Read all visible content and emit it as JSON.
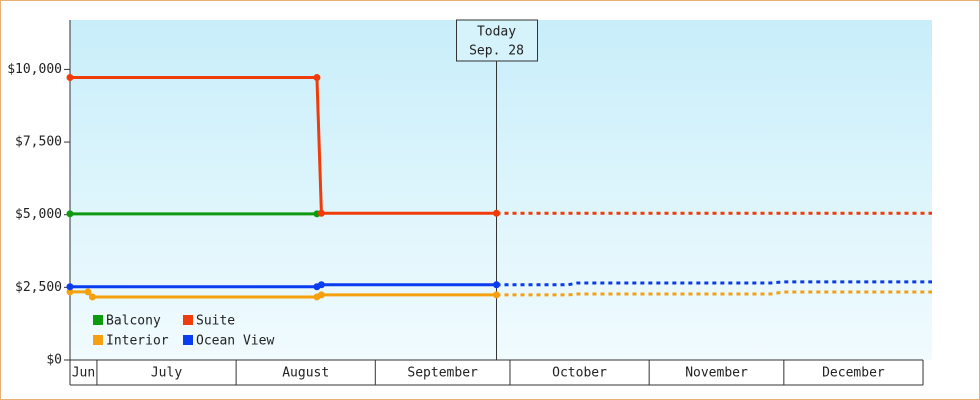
{
  "chart_data": {
    "type": "line",
    "xlim": [
      24,
      216
    ],
    "ylim": [
      0,
      11700
    ],
    "yticks": [
      {
        "value": 0,
        "label": "$0"
      },
      {
        "value": 2500,
        "label": "$2,500"
      },
      {
        "value": 5000,
        "label": "$5,000"
      },
      {
        "value": 7500,
        "label": "$7,500"
      },
      {
        "value": 10000,
        "label": "$10,000"
      }
    ],
    "x_bands": {
      "edges": [
        24,
        30,
        61,
        92,
        122,
        153,
        183,
        214
      ],
      "labels": [
        "Jun",
        "July",
        "August",
        "September",
        "October",
        "November",
        "December"
      ]
    },
    "annotation": {
      "x": 119,
      "lines": [
        "Today",
        "Sep. 28"
      ]
    },
    "legend": "lower left",
    "series": [
      {
        "name": "Balcony",
        "color": "#0e9a0e",
        "x": [
          24,
          79
        ],
        "values": [
          5030,
          5030
        ],
        "forecast_x": [],
        "forecast_values": []
      },
      {
        "name": "Suite",
        "color": "#f03c0a",
        "x": [
          24,
          79,
          80,
          119
        ],
        "values": [
          9720,
          9720,
          5050,
          5050
        ],
        "forecast_x": [
          119,
          135,
          137,
          180,
          183,
          216
        ],
        "forecast_values": [
          5050,
          5050,
          5050,
          5050,
          5050,
          5050
        ]
      },
      {
        "name": "Interior",
        "color": "#f5a00f",
        "x": [
          24,
          28,
          29,
          79,
          80,
          119
        ],
        "values": [
          2345,
          2345,
          2170,
          2170,
          2240,
          2240
        ],
        "forecast_x": [
          119,
          135,
          137,
          180,
          183,
          216
        ],
        "forecast_values": [
          2240,
          2240,
          2270,
          2270,
          2340,
          2340
        ]
      },
      {
        "name": "Ocean View",
        "color": "#0a3cf0",
        "x": [
          24,
          79,
          80,
          119
        ],
        "values": [
          2520,
          2520,
          2590,
          2590
        ],
        "forecast_x": [
          119,
          135,
          137,
          180,
          183,
          216
        ],
        "forecast_values": [
          2590,
          2590,
          2650,
          2650,
          2690,
          2690
        ]
      }
    ]
  }
}
